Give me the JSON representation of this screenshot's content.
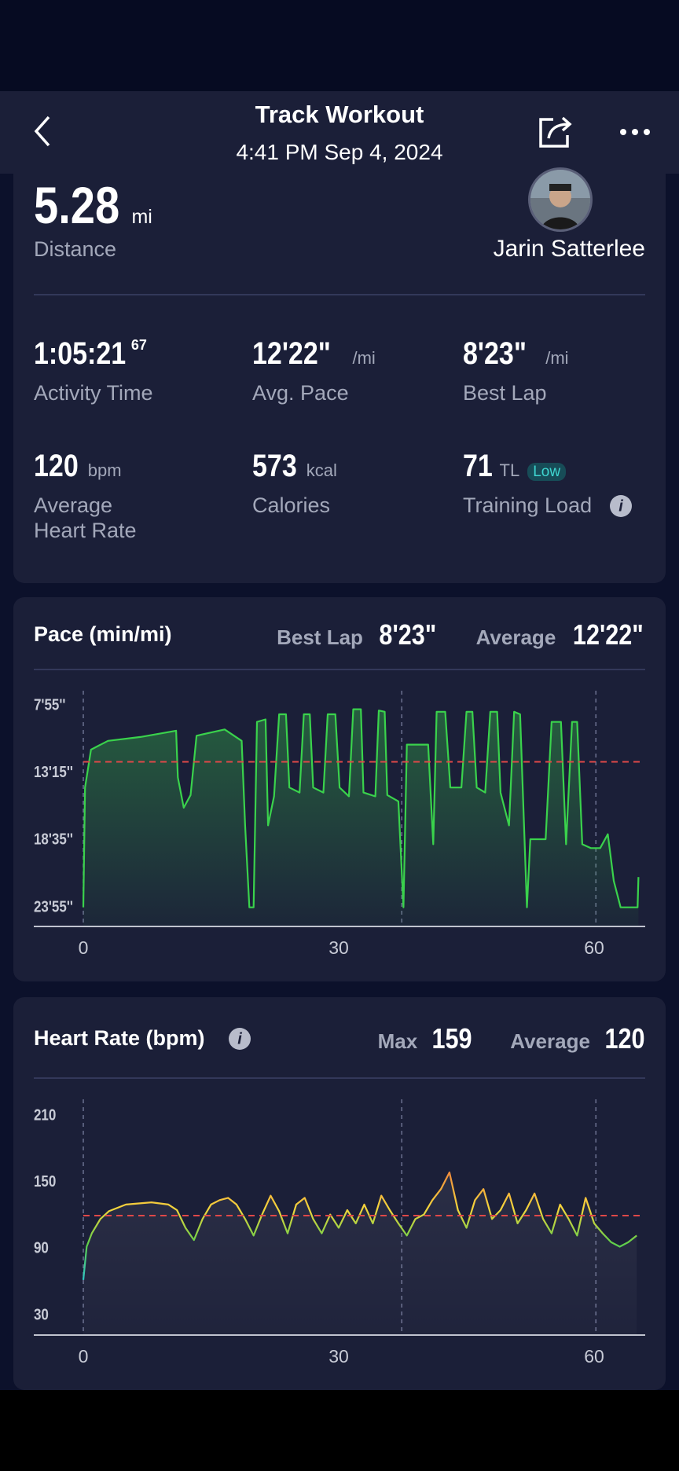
{
  "header": {
    "title": "Track Workout",
    "subtitle": "4:41 PM Sep 4, 2024"
  },
  "summary": {
    "distance": {
      "value": "5.28",
      "unit": "mi",
      "label": "Distance"
    },
    "athlete": "Jarin Satterlee",
    "stats": [
      {
        "value": "1:05:21",
        "sup": "67",
        "label": "Activity Time"
      },
      {
        "value": "12'22\"",
        "unit": "/mi",
        "label": "Avg. Pace"
      },
      {
        "value": "8'23\"",
        "unit": "/mi",
        "label": "Best Lap"
      },
      {
        "value": "120",
        "unit": "bpm",
        "label": "Average Heart Rate"
      },
      {
        "value": "573",
        "unit": "kcal",
        "label": "Calories"
      },
      {
        "value": "71",
        "unit": "TL",
        "badge": "Low",
        "label": "Training Load"
      }
    ]
  },
  "chart_data": [
    {
      "type": "line",
      "title": "Pace (min/mi)",
      "stats": [
        {
          "name": "Best Lap",
          "value": "8'23\""
        },
        {
          "name": "Average",
          "value": "12'22\""
        }
      ],
      "color": "#3ad24c",
      "y_inverted": true,
      "reference_line": 12.367,
      "reference_color": "#e04848",
      "vlines": [
        0,
        37.4,
        60.2
      ],
      "xlim": [
        0,
        65.9
      ],
      "xticks": [
        0,
        30,
        60
      ],
      "ylim": [
        6.73,
        25.41
      ],
      "yticks": [
        {
          "value": 7.917,
          "label": "7'55''"
        },
        {
          "value": 13.25,
          "label": "13'15''"
        },
        {
          "value": 18.583,
          "label": "18'35''"
        },
        {
          "value": 23.917,
          "label": "23'55''"
        }
      ],
      "x": [
        0,
        0.2,
        0.9,
        2.9,
        6.7,
        10.9,
        11.1,
        11.8,
        12.6,
        13.3,
        16.6,
        18.6,
        19.0,
        19.5,
        20.0,
        20.4,
        21.4,
        21.7,
        22.4,
        23.0,
        23.8,
        24.2,
        25.4,
        25.9,
        26.6,
        27.0,
        28.2,
        28.7,
        29.6,
        30.1,
        31.2,
        31.7,
        32.6,
        32.9,
        34.3,
        34.7,
        35.4,
        35.7,
        37.0,
        37.6,
        38.0,
        40.5,
        41.1,
        41.5,
        42.5,
        43.1,
        44.4,
        45.0,
        45.7,
        46.2,
        47.2,
        47.8,
        48.6,
        49.0,
        50.0,
        50.6,
        51.3,
        51.8,
        52.1,
        52.5,
        54.3,
        55.0,
        56.1,
        56.7,
        57.4,
        58.0,
        58.6,
        59.6,
        60.7,
        61.6,
        62.3,
        63.1,
        65.1,
        65.2
      ],
      "values": [
        23.9,
        14.4,
        11.4,
        10.7,
        10.4,
        9.9,
        13.6,
        16.0,
        15.0,
        10.3,
        9.8,
        10.7,
        17.4,
        23.9,
        23.9,
        9.2,
        9.0,
        17.4,
        15.1,
        8.6,
        8.6,
        14.4,
        14.8,
        8.6,
        8.6,
        14.4,
        14.8,
        8.6,
        8.6,
        14.4,
        15.1,
        8.2,
        8.2,
        14.8,
        15.1,
        8.3,
        8.4,
        15.0,
        15.5,
        23.9,
        11.0,
        11.0,
        18.9,
        8.4,
        8.4,
        14.4,
        14.4,
        8.4,
        8.4,
        14.4,
        14.8,
        8.4,
        8.4,
        14.8,
        17.4,
        8.4,
        8.6,
        18.1,
        23.9,
        18.5,
        18.5,
        9.2,
        9.2,
        18.9,
        9.2,
        9.2,
        18.9,
        19.2,
        19.2,
        18.1,
        21.8,
        23.9,
        23.9,
        21.5
      ]
    },
    {
      "type": "line",
      "title": "Heart Rate (bpm)",
      "stats": [
        {
          "name": "Max",
          "value": 159
        },
        {
          "name": "Average",
          "value": 120
        }
      ],
      "zone_colors": [
        "#f08a3c",
        "#f5d63c",
        "#5fcf4a",
        "#2ec5c5"
      ],
      "reference_line": 120,
      "reference_color": "#e04848",
      "vlines": [
        0,
        37.4,
        60.2
      ],
      "xlim": [
        0,
        65.9
      ],
      "xticks": [
        0,
        30,
        60
      ],
      "ylim": [
        12.3,
        224.9
      ],
      "yticks": [
        210,
        150,
        90,
        30
      ],
      "x": [
        0,
        0.4,
        1,
        2,
        3,
        5,
        8,
        10,
        11,
        12,
        13,
        14,
        15,
        16,
        17,
        18,
        19,
        20,
        21,
        22,
        23,
        24,
        25,
        26,
        27,
        28,
        29,
        30,
        31,
        32,
        33,
        34,
        35,
        36,
        37,
        38,
        39,
        40,
        41,
        42,
        43,
        44,
        45,
        46,
        47,
        48,
        49,
        50,
        51,
        52,
        53,
        54,
        55,
        56,
        57,
        58,
        59,
        60,
        61,
        62,
        63,
        64,
        65
      ],
      "values": [
        62,
        92,
        104,
        117,
        124,
        130,
        132,
        130,
        125,
        109,
        98,
        117,
        130,
        134,
        136,
        130,
        117,
        102,
        121,
        138,
        124,
        104,
        130,
        136,
        117,
        104,
        121,
        109,
        125,
        113,
        130,
        113,
        138,
        125,
        113,
        102,
        117,
        121,
        134,
        144,
        159,
        125,
        109,
        134,
        144,
        117,
        125,
        140,
        113,
        125,
        140,
        117,
        104,
        130,
        117,
        102,
        136,
        113,
        104,
        96,
        92,
        96,
        102
      ]
    }
  ]
}
